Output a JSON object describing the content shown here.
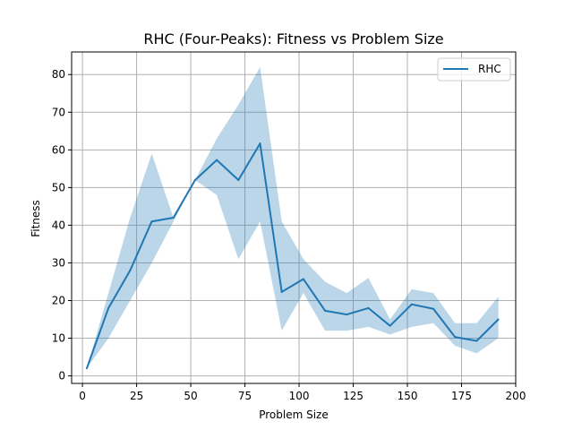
{
  "chart_data": {
    "type": "line",
    "title": "RHC (Four-Peaks): Fitness vs Problem Size",
    "xlabel": "Problem Size",
    "ylabel": "Fitness",
    "xlim": [
      -5,
      200
    ],
    "ylim": [
      -2,
      86
    ],
    "xticks": [
      0,
      25,
      50,
      75,
      100,
      125,
      150,
      175,
      200
    ],
    "yticks": [
      0,
      10,
      20,
      30,
      40,
      50,
      60,
      70,
      80
    ],
    "grid": true,
    "legend_position": "top-right",
    "series": [
      {
        "name": "RHC",
        "color": "#1f77b4",
        "band_color": "#1f77b4",
        "x": [
          2,
          12,
          22,
          32,
          42,
          52,
          62,
          72,
          82,
          92,
          102,
          112,
          122,
          132,
          142,
          152,
          162,
          172,
          182,
          192
        ],
        "y": [
          2,
          18,
          28,
          41,
          42,
          52,
          57.3,
          52,
          61.7,
          22.3,
          25.7,
          17.3,
          16.3,
          18,
          13.3,
          19,
          17.8,
          10.3,
          9.3,
          15
        ],
        "lower": [
          2,
          10,
          20,
          30,
          41,
          52,
          48,
          31,
          41,
          12,
          22,
          12,
          12,
          13,
          11,
          13,
          14,
          8,
          6,
          10
        ],
        "upper": [
          2,
          22,
          42,
          59,
          42,
          52,
          63,
          72,
          82,
          41,
          31,
          25,
          22,
          26,
          15,
          23,
          22,
          14,
          14,
          21
        ]
      }
    ]
  }
}
